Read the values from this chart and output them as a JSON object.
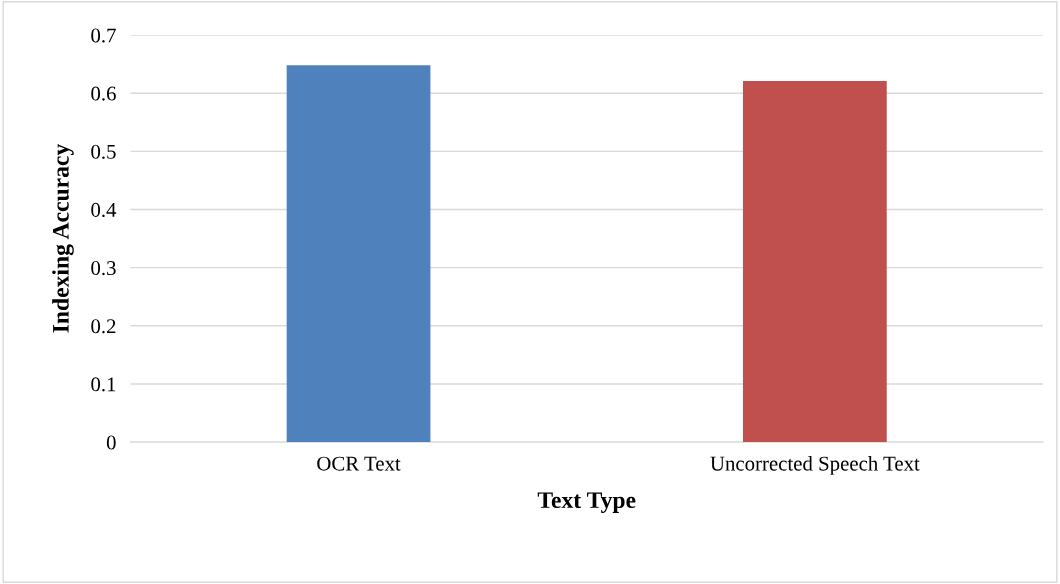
{
  "chart_data": {
    "type": "bar",
    "xlabel": "Text Type",
    "ylabel": "Indexing Accuracy",
    "categories": [
      "OCR Text",
      "Uncorrected Speech Text"
    ],
    "values": [
      0.648,
      0.621
    ],
    "colors": [
      "#4f81bd",
      "#c0504d"
    ],
    "ylim": [
      0,
      0.7
    ],
    "yticks": [
      {
        "value": 0,
        "label": "0"
      },
      0.1,
      0.2,
      0.3,
      0.4,
      0.5,
      0.6,
      0.7
    ],
    "grid": "y",
    "legend": false
  }
}
